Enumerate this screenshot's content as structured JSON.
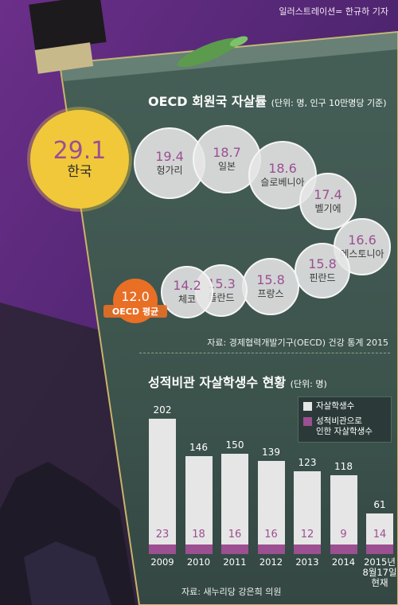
{
  "credit": "일러스트레이션= 한규하 기자",
  "colors": {
    "accent_purple": "#9c4f91",
    "bar_gray": "#e6e6e6",
    "korea_yellow": "#f1c83a",
    "oecd_orange": "#e96f25",
    "panel_green": "#3f5951"
  },
  "section1": {
    "title": "OECD 회원국 자살률",
    "unit": "(단위: 명, 인구 10만명당 기준)",
    "source": "자료: 경제협력개발기구(OECD) 건강 통계 2015"
  },
  "section2": {
    "title": "성적비관 자살학생수 현황",
    "unit": "(단위: 명)",
    "source": "자료: 새누리당 강은희 의원"
  },
  "chart_data": [
    {
      "type": "bubble",
      "title": "OECD 회원국 자살률",
      "unit": "(단위: 명, 인구 10만명당 기준)",
      "points": [
        {
          "label": "한국",
          "value": 29.1
        },
        {
          "label": "헝가리",
          "value": 19.4
        },
        {
          "label": "일본",
          "value": 18.7
        },
        {
          "label": "슬로베니아",
          "value": 18.6
        },
        {
          "label": "벨기에",
          "value": 17.4
        },
        {
          "label": "에스토니아",
          "value": 16.6
        },
        {
          "label": "핀란드",
          "value": 15.8
        },
        {
          "label": "프랑스",
          "value": 15.8
        },
        {
          "label": "폴란드",
          "value": 15.3
        },
        {
          "label": "체코",
          "value": 14.2
        },
        {
          "label": "OECD 평균",
          "value": 12.0
        }
      ]
    },
    {
      "type": "bar",
      "title": "성적비관 자살학생수 현황",
      "unit": "(단위: 명)",
      "categories": [
        "2009",
        "2010",
        "2011",
        "2012",
        "2013",
        "2014",
        "2015년\n8월17일\n현재"
      ],
      "series": [
        {
          "name": "자살학생수",
          "values": [
            202,
            146,
            150,
            139,
            123,
            118,
            61
          ]
        },
        {
          "name": "성적비관으로\n인한 자살학생수",
          "values": [
            23,
            18,
            16,
            16,
            12,
            9,
            14
          ]
        }
      ]
    }
  ]
}
